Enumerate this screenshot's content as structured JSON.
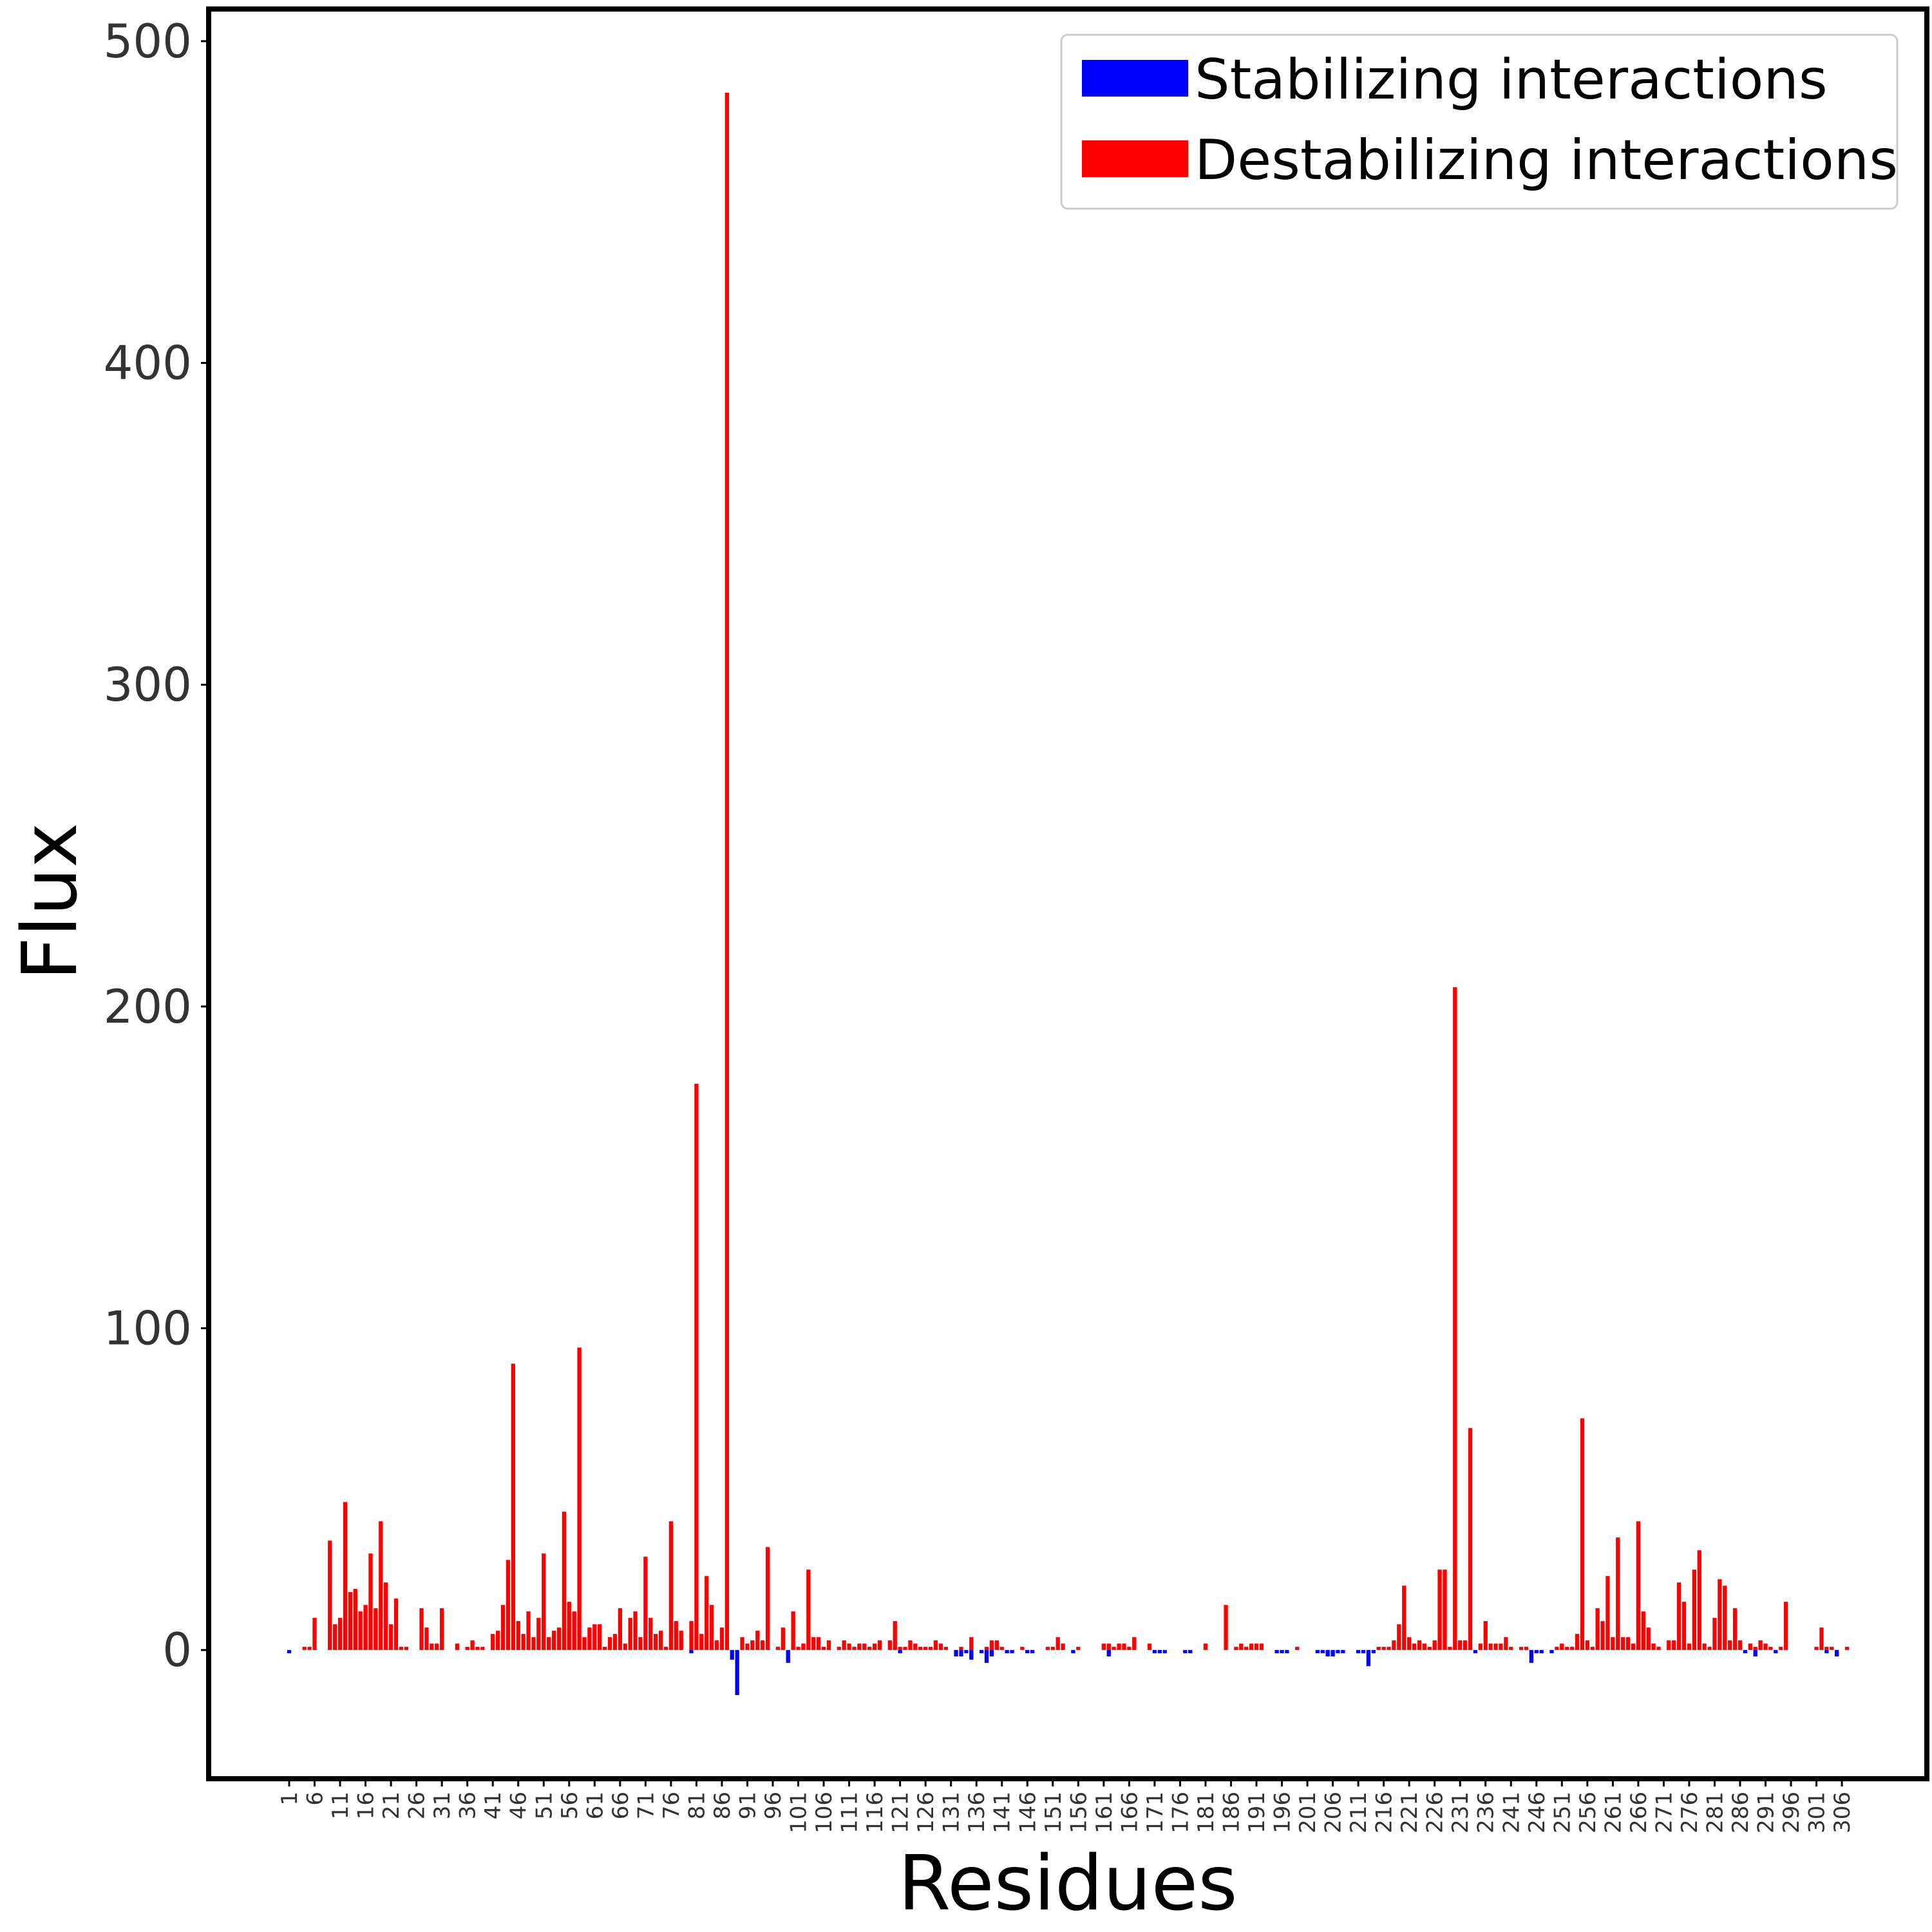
{
  "chart_data": {
    "type": "bar",
    "xlabel": "Residues",
    "ylabel": "Flux",
    "ylim": [
      -40,
      510
    ],
    "yticks": [
      0,
      100,
      200,
      300,
      400,
      500
    ],
    "xticks": [
      "1",
      "6",
      "11",
      "16",
      "21",
      "26",
      "31",
      "36",
      "41",
      "46",
      "51",
      "56",
      "61",
      "66",
      "71",
      "76",
      "81",
      "86",
      "91",
      "96",
      "101",
      "106",
      "111",
      "116",
      "121",
      "126",
      "131",
      "136",
      "141",
      "146",
      "151",
      "156",
      "161",
      "166",
      "171",
      "176",
      "181",
      "186",
      "191",
      "196",
      "201",
      "206",
      "211",
      "216",
      "221",
      "226",
      "231",
      "236",
      "241",
      "246",
      "251",
      "256",
      "261",
      "266",
      "271",
      "276",
      "281",
      "286",
      "291",
      "296",
      "301",
      "306"
    ],
    "xrange": [
      1,
      307
    ],
    "grid": false,
    "legend": {
      "position": "top-right",
      "entries": [
        {
          "label": "Stabilizing interactions",
          "color": "#0000ff"
        },
        {
          "label": "Destabilizing interactions",
          "color": "#ff0000"
        }
      ]
    },
    "series": [
      {
        "name": "Destabilizing interactions",
        "color": "#ff0000",
        "residues": [
          4,
          5,
          6,
          9,
          10,
          11,
          12,
          13,
          14,
          15,
          16,
          17,
          18,
          19,
          20,
          21,
          22,
          23,
          24,
          27,
          28,
          29,
          30,
          31,
          34,
          36,
          37,
          38,
          39,
          41,
          42,
          43,
          44,
          45,
          46,
          47,
          48,
          49,
          50,
          51,
          52,
          53,
          54,
          55,
          56,
          57,
          58,
          59,
          60,
          61,
          62,
          63,
          64,
          65,
          66,
          67,
          68,
          69,
          70,
          71,
          72,
          73,
          74,
          75,
          76,
          77,
          78,
          80,
          81,
          82,
          83,
          84,
          85,
          86,
          87,
          90,
          91,
          92,
          93,
          94,
          95,
          97,
          98,
          100,
          101,
          102,
          103,
          104,
          105,
          106,
          107,
          109,
          110,
          111,
          112,
          113,
          114,
          115,
          116,
          117,
          119,
          120,
          121,
          122,
          123,
          124,
          125,
          126,
          127,
          128,
          129,
          130,
          133,
          135,
          138,
          139,
          140,
          141,
          145,
          150,
          151,
          152,
          153,
          156,
          161,
          162,
          163,
          164,
          165,
          166,
          167,
          170,
          181,
          185,
          187,
          188,
          189,
          190,
          191,
          192,
          199,
          215,
          216,
          217,
          218,
          219,
          220,
          221,
          222,
          223,
          224,
          225,
          226,
          227,
          228,
          229,
          230,
          231,
          232,
          233,
          235,
          236,
          237,
          238,
          239,
          240,
          241,
          243,
          244,
          250,
          251,
          252,
          253,
          254,
          255,
          256,
          257,
          258,
          259,
          260,
          261,
          262,
          263,
          264,
          265,
          266,
          267,
          268,
          269,
          270,
          272,
          273,
          274,
          275,
          276,
          277,
          278,
          279,
          280,
          281,
          282,
          283,
          284,
          285,
          286,
          288,
          289,
          290,
          291,
          292,
          294,
          295,
          301,
          302,
          303,
          304,
          307
        ],
        "values": [
          1,
          1,
          10,
          34,
          8,
          10,
          46,
          18,
          19,
          12,
          14,
          30,
          13,
          40,
          21,
          8,
          16,
          1,
          1,
          13,
          7,
          2,
          2,
          13,
          2,
          1,
          3,
          1,
          1,
          5,
          6,
          14,
          28,
          89,
          9,
          5,
          12,
          4,
          10,
          30,
          4,
          6,
          7,
          43,
          15,
          12,
          94,
          4,
          7,
          8,
          8,
          1,
          4,
          5,
          13,
          2,
          10,
          12,
          4,
          29,
          10,
          5,
          6,
          1,
          40,
          9,
          6,
          9,
          176,
          5,
          23,
          14,
          3,
          7,
          484,
          4,
          2,
          3,
          6,
          3,
          32,
          1,
          7,
          12,
          1,
          2,
          25,
          4,
          4,
          1,
          3,
          1,
          3,
          2,
          1,
          2,
          2,
          1,
          2,
          3,
          3,
          9,
          1,
          1,
          3,
          2,
          1,
          1,
          1,
          3,
          2,
          1,
          1,
          4,
          1,
          3,
          3,
          1,
          1,
          1,
          1,
          4,
          2,
          1,
          2,
          2,
          1,
          2,
          2,
          1,
          4,
          2,
          2,
          14,
          1,
          2,
          1,
          2,
          2,
          2,
          1,
          1,
          1,
          1,
          3,
          8,
          20,
          4,
          2,
          3,
          2,
          1,
          3,
          25,
          25,
          1,
          206,
          3,
          3,
          69,
          2,
          9,
          2,
          2,
          2,
          4,
          1,
          1,
          1,
          1,
          2,
          1,
          1,
          5,
          72,
          3,
          1,
          13,
          9,
          23,
          4,
          35,
          4,
          4,
          2,
          40,
          12,
          7,
          2,
          1,
          3,
          3,
          21,
          15,
          2,
          25,
          31,
          2,
          1,
          10,
          22,
          20,
          3,
          13,
          3,
          2,
          1,
          3,
          2,
          1,
          1,
          15,
          1,
          7,
          1,
          1,
          1,
          1,
          16
        ],
        "note_values": []
      },
      {
        "name": "Stabilizing interactions",
        "color": "#0000ff",
        "residues": [
          1,
          80,
          88,
          89,
          99,
          121,
          132,
          133,
          134,
          135,
          137,
          138,
          139,
          142,
          143,
          146,
          147,
          155,
          162,
          171,
          172,
          173,
          177,
          178,
          195,
          196,
          197,
          203,
          204,
          205,
          206,
          207,
          208,
          211,
          212,
          213,
          214,
          234,
          245,
          246,
          247,
          249,
          287,
          289,
          293,
          303,
          305
        ],
        "values": [
          -1,
          -1,
          -3,
          -14,
          -4,
          -1,
          -2,
          -2,
          -1,
          -3,
          -1,
          -4,
          -2,
          -1,
          -1,
          -1,
          -1,
          -1,
          -2,
          -1,
          -1,
          -1,
          -1,
          -1,
          -1,
          -1,
          -1,
          -1,
          -1,
          -2,
          -2,
          -1,
          -1,
          -1,
          -1,
          -5,
          -1,
          -1,
          -4,
          -1,
          -1,
          -1,
          -1,
          -2,
          -1,
          -1,
          -2
        ]
      }
    ]
  }
}
